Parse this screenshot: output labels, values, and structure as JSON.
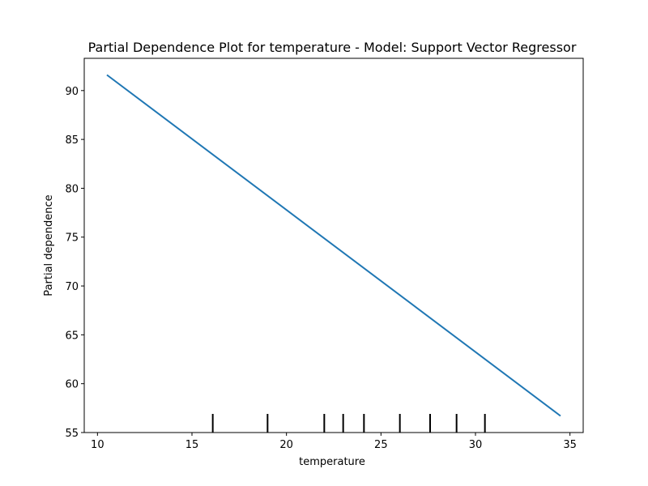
{
  "chart_data": {
    "type": "line",
    "title": "Partial Dependence Plot for temperature - Model: Support Vector Regressor",
    "xlabel": "temperature",
    "ylabel": "Partial dependence",
    "xlim": [
      9.3,
      35.7
    ],
    "ylim": [
      55,
      93.3
    ],
    "xticks": [
      10,
      15,
      20,
      25,
      30,
      35
    ],
    "yticks": [
      55,
      60,
      65,
      70,
      75,
      80,
      85,
      90
    ],
    "grid": false,
    "series": [
      {
        "color": "#1f77b4",
        "x": [
          10.5,
          34.5
        ],
        "y": [
          91.6,
          56.7
        ]
      }
    ],
    "deciles": [
      16.1,
      19.0,
      22.0,
      23.0,
      24.1,
      26.0,
      27.6,
      29.0,
      30.5
    ],
    "decile_color": "#000000"
  }
}
